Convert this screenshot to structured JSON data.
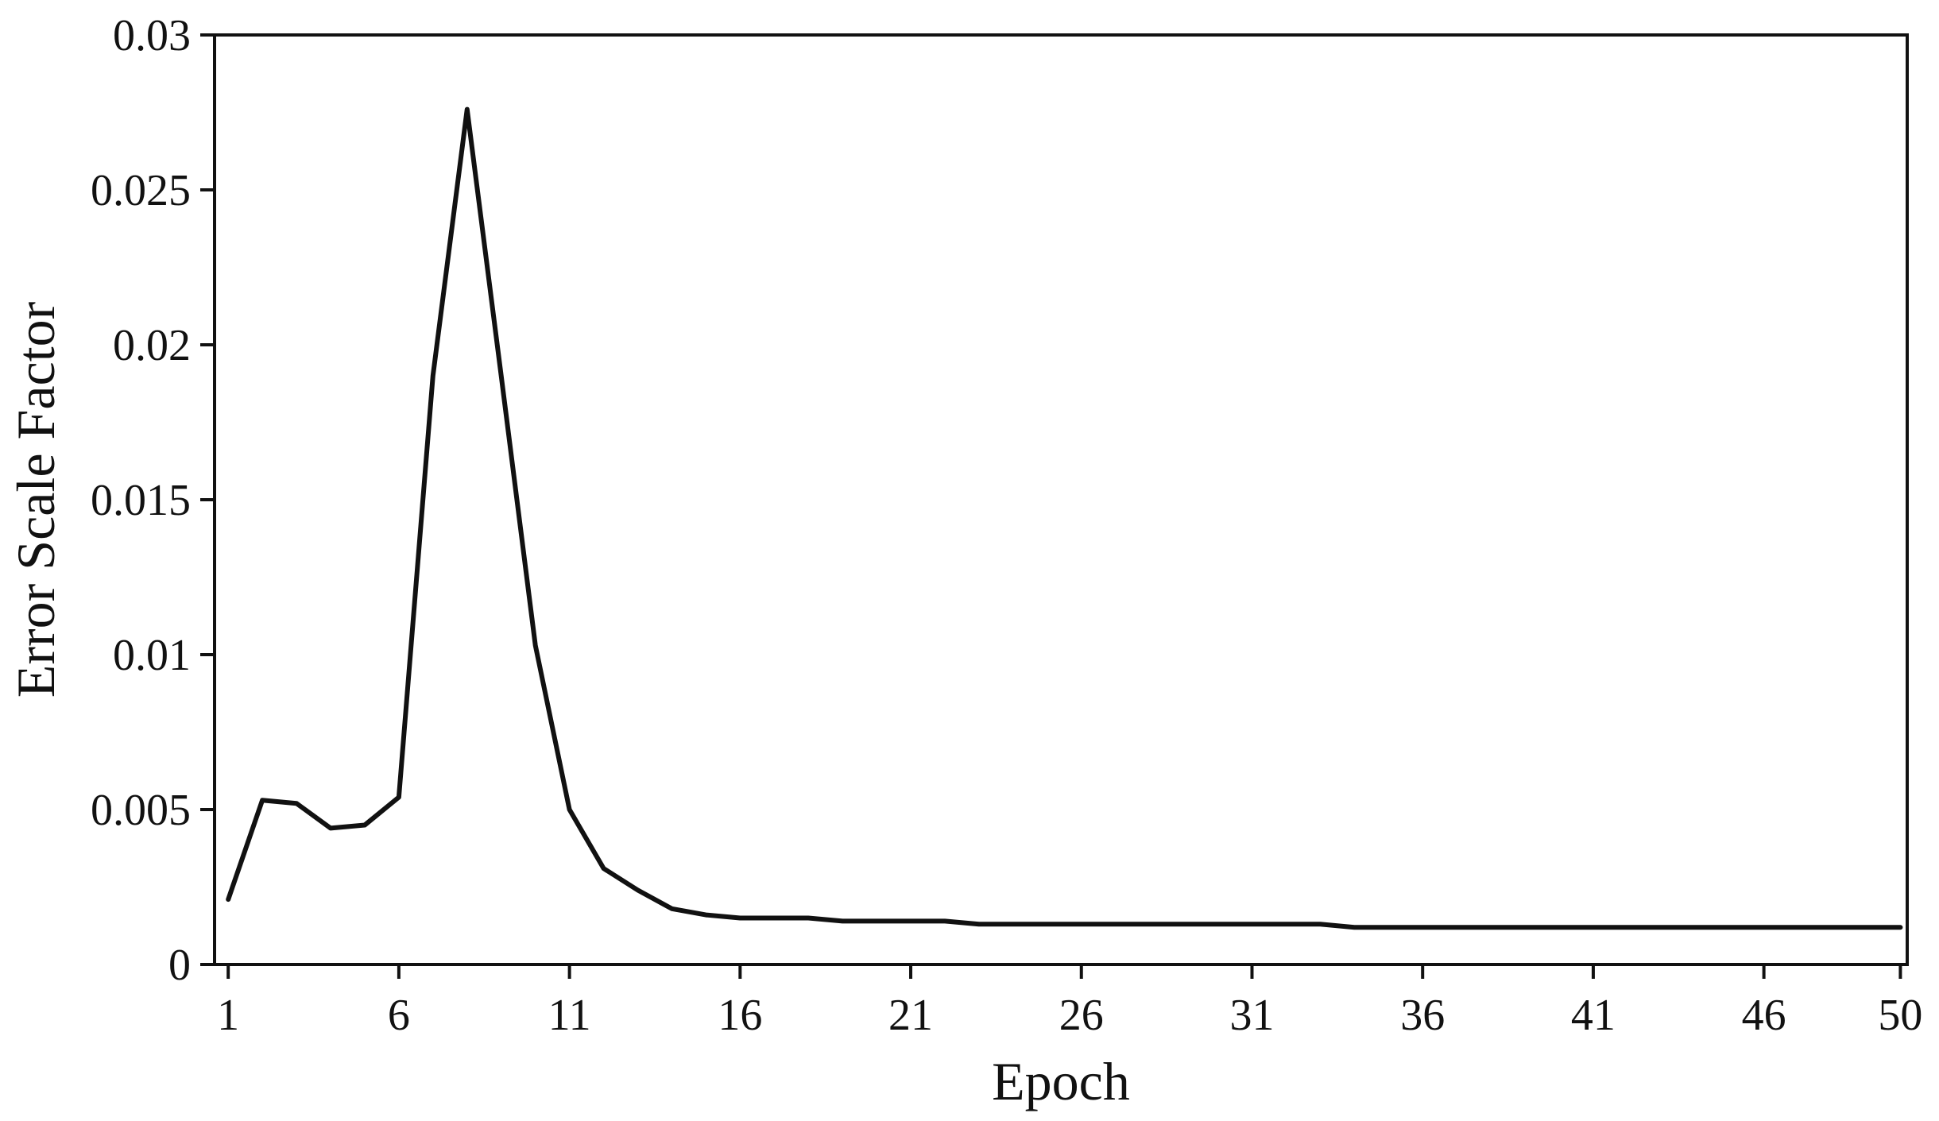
{
  "chart_data": {
    "type": "line",
    "title": "",
    "xlabel": "Epoch",
    "ylabel": "Error Scale Factor",
    "xlim": [
      0.6,
      50.2
    ],
    "ylim": [
      0,
      0.03
    ],
    "x_ticks": [
      1,
      6,
      11,
      16,
      21,
      26,
      31,
      36,
      41,
      46,
      50
    ],
    "y_ticks": [
      0,
      0.005,
      0.01,
      0.015,
      0.02,
      0.025,
      0.03
    ],
    "y_tick_labels": [
      "0",
      "0.005",
      "0.01",
      "0.015",
      "0.02",
      "0.025",
      "0.03"
    ],
    "grid": false,
    "legend": "none",
    "line_color": "#111111",
    "series": [
      {
        "x": [
          1,
          2,
          3,
          4,
          5,
          6,
          7,
          8,
          9,
          10,
          11,
          12,
          13,
          14,
          15,
          16,
          17,
          18,
          19,
          20,
          21,
          22,
          23,
          24,
          25,
          26,
          27,
          28,
          29,
          30,
          31,
          32,
          33,
          34,
          35,
          36,
          37,
          38,
          39,
          40,
          41,
          42,
          43,
          44,
          45,
          46,
          47,
          48,
          49,
          50
        ],
        "values": [
          0.0021,
          0.0053,
          0.0052,
          0.0044,
          0.0045,
          0.0054,
          0.019,
          0.0276,
          0.019,
          0.0103,
          0.005,
          0.0031,
          0.0024,
          0.0018,
          0.0016,
          0.0015,
          0.0015,
          0.0015,
          0.0014,
          0.0014,
          0.0014,
          0.0014,
          0.0013,
          0.0013,
          0.0013,
          0.0013,
          0.0013,
          0.0013,
          0.0013,
          0.0013,
          0.0013,
          0.0013,
          0.0013,
          0.0012,
          0.0012,
          0.0012,
          0.0012,
          0.0012,
          0.0012,
          0.0012,
          0.0012,
          0.0012,
          0.0012,
          0.0012,
          0.0012,
          0.0012,
          0.0012,
          0.0012,
          0.0012,
          0.0012
        ]
      }
    ]
  }
}
